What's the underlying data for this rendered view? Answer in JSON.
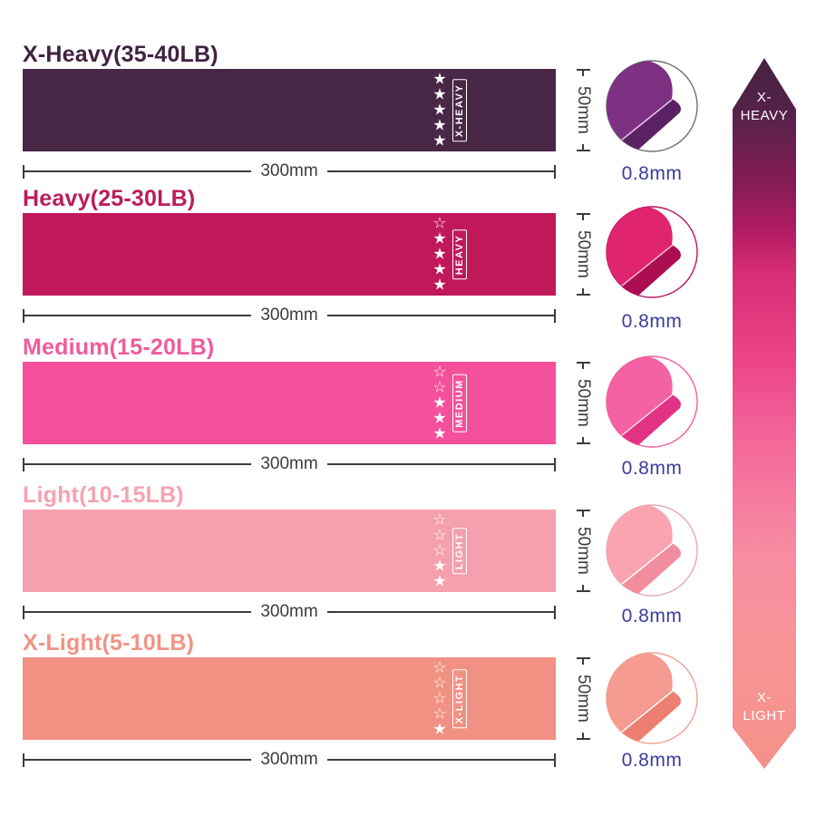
{
  "stars_total": 5,
  "dim_color": "#3c3c3c",
  "thickness_color": "#3b3c9d",
  "bands": [
    {
      "title": "X-Heavy(35-40LB)",
      "title_color": "#3f2240",
      "band_color": "#482846",
      "label": "X-HEAVY",
      "stars_filled": 5,
      "width_label": "300mm",
      "height_label": "50mm",
      "thickness_label": "0.8mm",
      "circle": {
        "main": "#7c3183",
        "shadow": "#5a2263",
        "edge": "#eec9ea",
        "ring": "#6f6f6f"
      }
    },
    {
      "title": "Heavy(25-30LB)",
      "title_color": "#ba1e58",
      "band_color": "#c1185a",
      "label": "HEAVY",
      "stars_filled": 4,
      "width_label": "300mm",
      "height_label": "50mm",
      "thickness_label": "0.8mm",
      "circle": {
        "main": "#e0246f",
        "shadow": "#ab0f52",
        "edge": "#f8bcd4",
        "ring": "#b3175a"
      }
    },
    {
      "title": "Medium(15-20LB)",
      "title_color": "#ee5c9d",
      "band_color": "#f4509b",
      "label": "MEDIUM",
      "stars_filled": 3,
      "width_label": "300mm",
      "height_label": "50mm",
      "thickness_label": "0.8mm",
      "circle": {
        "main": "#f562a4",
        "shadow": "#e23284",
        "edge": "#fcd9ea",
        "ring": "#ee5f9f"
      }
    },
    {
      "title": "Light(10-15LB)",
      "title_color": "#f5a3b1",
      "band_color": "#f5a0ae",
      "label": "LIGHT",
      "stars_filled": 2,
      "width_label": "300mm",
      "height_label": "50mm",
      "thickness_label": "0.8mm",
      "circle": {
        "main": "#f9a4b0",
        "shadow": "#f28d9e",
        "edge": "#ffffff",
        "ring": "#e8a8b2"
      }
    },
    {
      "title": "X-Light(5-10LB)",
      "title_color": "#f19486",
      "band_color": "#f19184",
      "label": "X-LIGHT",
      "stars_filled": 1,
      "width_label": "300mm",
      "height_label": "50mm",
      "thickness_label": "0.8mm",
      "circle": {
        "main": "#f59b91",
        "shadow": "#ec7f71",
        "edge": "#ffffff",
        "ring": "#efa193"
      }
    }
  ],
  "arrow": {
    "top": [
      "X-",
      "HEAVY"
    ],
    "bottom": [
      "X-",
      "LIGHT"
    ],
    "text_color": "#ffffff",
    "gradient": [
      "#44223f 0%",
      "#56224a 8%",
      "#871c55 18%",
      "#b01b61 24%",
      "#d62d74 30%",
      "#ec4589 43%",
      "#f46a9b 55%",
      "#f78da2 70%",
      "#f79594 85%",
      "#f59089 100%"
    ]
  }
}
